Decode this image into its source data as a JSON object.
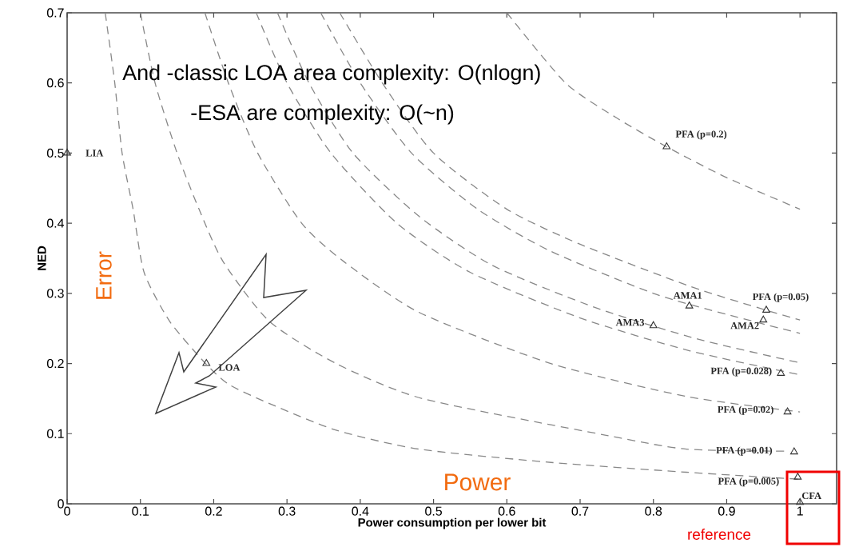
{
  "chart_data": {
    "type": "scatter",
    "xlabel": "Power consumption per lower bit",
    "ylabel": "NED",
    "xlim": [
      0,
      1.05
    ],
    "ylim": [
      0,
      0.7
    ],
    "xticks": [
      0,
      0.1,
      0.2,
      0.3,
      0.4,
      0.5,
      0.6,
      0.7,
      0.8,
      0.9,
      1
    ],
    "yticks": [
      0,
      0.1,
      0.2,
      0.3,
      0.4,
      0.5,
      0.6,
      0.7
    ],
    "series": [
      {
        "marker": "triangle",
        "color": "#333333",
        "x": [
          0,
          0.19,
          0.818,
          0.849,
          0.954,
          0.95,
          0.8,
          0.974,
          0.983,
          0.992,
          0.997,
          1.0
        ],
        "values": [
          0.5,
          0.2,
          0.509,
          0.282,
          0.276,
          0.262,
          0.254,
          0.186,
          0.131,
          0.074,
          0.038,
          0.002
        ]
      },
      {
        "type": "line",
        "color": "#888888",
        "line_style": "dashed",
        "x": [
          0.052,
          0.065,
          0.075,
          0.09,
          0.105,
          0.14,
          0.188,
          0.221,
          0.276,
          0.367,
          0.48,
          0.66,
          0.845,
          1.0
        ],
        "values": [
          0.7,
          0.6,
          0.5,
          0.42,
          0.33,
          0.26,
          0.201,
          0.17,
          0.143,
          0.105,
          0.078,
          0.059,
          0.045,
          0.035
        ]
      },
      {
        "type": "line",
        "color": "#888888",
        "line_style": "dashed",
        "x": [
          0.1,
          0.12,
          0.15,
          0.18,
          0.213,
          0.276,
          0.367,
          0.485,
          0.734,
          0.845,
          0.986
        ],
        "values": [
          0.7,
          0.6,
          0.5,
          0.42,
          0.345,
          0.26,
          0.2,
          0.15,
          0.098,
          0.078,
          0.075
        ]
      },
      {
        "type": "line",
        "color": "#888888",
        "line_style": "dashed",
        "x": [
          0.188,
          0.22,
          0.26,
          0.32,
          0.378,
          0.48,
          0.66,
          0.845,
          1.0
        ],
        "values": [
          0.7,
          0.6,
          0.5,
          0.4,
          0.345,
          0.273,
          0.2,
          0.153,
          0.131
        ]
      },
      {
        "type": "line",
        "color": "#888888",
        "line_style": "dashed",
        "x": [
          0.258,
          0.3,
          0.36,
          0.45,
          0.55,
          0.7,
          0.85,
          1.0
        ],
        "values": [
          0.7,
          0.6,
          0.5,
          0.4,
          0.33,
          0.265,
          0.218,
          0.184
        ]
      },
      {
        "type": "line",
        "color": "#888888",
        "line_style": "dashed",
        "x": [
          0.287,
          0.33,
          0.39,
          0.48,
          0.58,
          0.72,
          0.86,
          1.0
        ],
        "values": [
          0.7,
          0.6,
          0.5,
          0.41,
          0.34,
          0.28,
          0.235,
          0.201
        ]
      },
      {
        "type": "line",
        "color": "#888888",
        "line_style": "dashed",
        "x": [
          0.346,
          0.4,
          0.47,
          0.56,
          0.66,
          0.8,
          0.9,
          1.0
        ],
        "values": [
          0.7,
          0.6,
          0.5,
          0.42,
          0.36,
          0.3,
          0.27,
          0.243
        ]
      },
      {
        "type": "line",
        "color": "#888888",
        "line_style": "dashed",
        "x": [
          0.372,
          0.43,
          0.5,
          0.6,
          0.7,
          0.85,
          0.954,
          1.0
        ],
        "values": [
          0.7,
          0.6,
          0.5,
          0.42,
          0.37,
          0.31,
          0.276,
          0.262
        ]
      },
      {
        "type": "line",
        "color": "#888888",
        "line_style": "dashed",
        "x": [
          0.6,
          0.68,
          0.75,
          0.818,
          0.9,
          1.0
        ],
        "values": [
          0.7,
          0.6,
          0.55,
          0.509,
          0.465,
          0.42
        ]
      }
    ],
    "annotations": [
      "And -classic LOA area complexity: O(nlogn)",
      "-ESA are complexity: O(~n)",
      "Error",
      "Power",
      "reference",
      {
        "text": "LIA",
        "x": 0,
        "y": 0.5
      },
      {
        "text": "LOA",
        "x": 0.19,
        "y": 0.2
      },
      {
        "text": "PFA (p=0.2)",
        "x": 0.818,
        "y": 0.509
      },
      {
        "text": "AMA1",
        "x": 0.849,
        "y": 0.282
      },
      {
        "text": "PFA (p=0.05)",
        "x": 0.954,
        "y": 0.276
      },
      {
        "text": "AMA2",
        "x": 0.95,
        "y": 0.262
      },
      {
        "text": "AMA3",
        "x": 0.8,
        "y": 0.254
      },
      {
        "text": "PFA (p=0.028)",
        "x": 0.974,
        "y": 0.186
      },
      {
        "text": "PFA (p=0.02)",
        "x": 0.983,
        "y": 0.131
      },
      {
        "text": "PFA (p=0.01)",
        "x": 0.992,
        "y": 0.074
      },
      {
        "text": "PFA (p=0.005)",
        "x": 0.997,
        "y": 0.038
      },
      {
        "text": "CFA",
        "x": 1.0,
        "y": 0.002
      }
    ]
  }
}
